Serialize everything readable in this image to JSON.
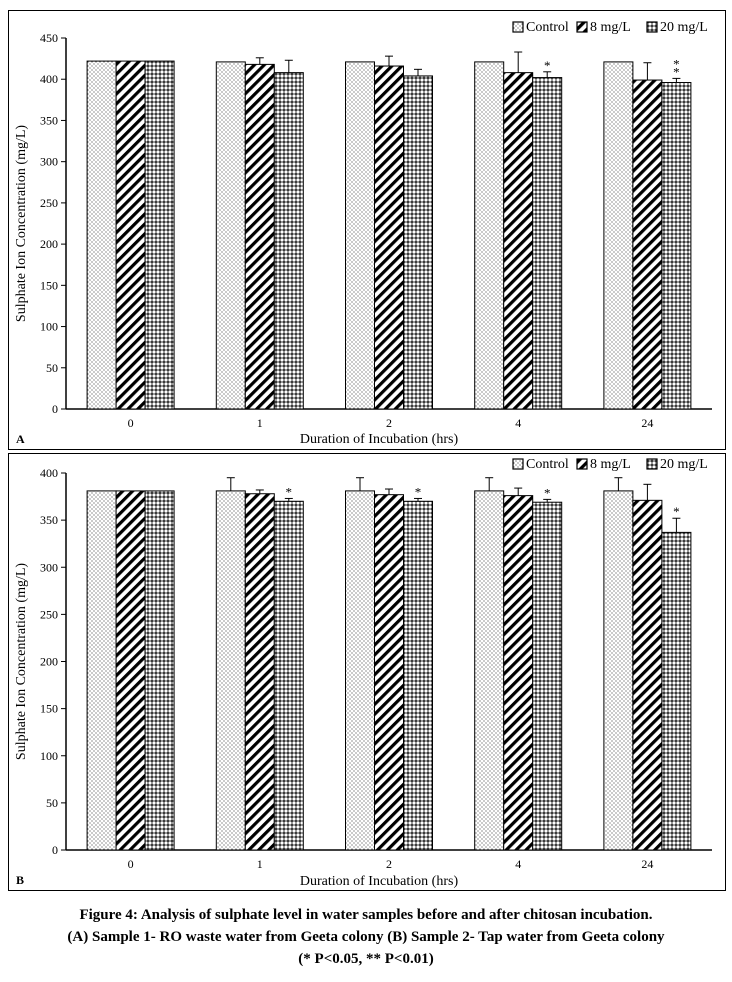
{
  "colors": {
    "axis": "#000000",
    "bar_fill": "#ffffff",
    "pattern": "#000000",
    "dense_bg": "#9a9a9a"
  },
  "legend": [
    "Control",
    "8 mg/L",
    "20 mg/L"
  ],
  "chart_data": [
    {
      "type": "bar",
      "panel_label": "A",
      "categories": [
        "0",
        "1",
        "2",
        "4",
        "24"
      ],
      "xlabel": "Duration of Incubation (hrs)",
      "ylabel": "Sulphate Ion Concentration (mg/L)",
      "ylim": [
        0,
        450
      ],
      "yticks": [
        "0",
        "50",
        "100",
        "150",
        "200",
        "250",
        "300",
        "350",
        "400",
        "450"
      ],
      "legend_position": "top-right",
      "grid": false,
      "series": [
        {
          "name": "Control",
          "pattern": "dots",
          "values": [
            422,
            421,
            421,
            421,
            421
          ],
          "errors": [
            0,
            0,
            0,
            0,
            0
          ]
        },
        {
          "name": "8 mg/L",
          "pattern": "diagonal",
          "values": [
            422,
            418,
            416,
            408,
            399
          ],
          "errors": [
            0,
            8,
            12,
            25,
            21
          ]
        },
        {
          "name": "20 mg/L",
          "pattern": "dense",
          "values": [
            422,
            408,
            404,
            402,
            396
          ],
          "errors": [
            0,
            15,
            8,
            7,
            5
          ]
        }
      ],
      "annotations": [
        {
          "category": "4",
          "series": "20 mg/L",
          "text": "*"
        },
        {
          "category": "24",
          "series": "20 mg/L",
          "text": "**"
        }
      ]
    },
    {
      "type": "bar",
      "panel_label": "B",
      "categories": [
        "0",
        "1",
        "2",
        "4",
        "24"
      ],
      "xlabel": "Duration of Incubation  (hrs)",
      "ylabel": "Sulphate Ion Concentration (mg/L)",
      "ylim": [
        0,
        400
      ],
      "yticks": [
        "0",
        "50",
        "100",
        "150",
        "200",
        "250",
        "300",
        "350",
        "400"
      ],
      "legend_position": "top-right",
      "grid": false,
      "series": [
        {
          "name": "Control",
          "pattern": "dots",
          "values": [
            381,
            381,
            381,
            381,
            381
          ],
          "errors": [
            0,
            14,
            14,
            14,
            14
          ]
        },
        {
          "name": "8 mg/L",
          "pattern": "diagonal",
          "values": [
            381,
            378,
            377,
            376,
            371
          ],
          "errors": [
            0,
            4,
            6,
            8,
            17
          ]
        },
        {
          "name": "20 mg/L",
          "pattern": "dense",
          "values": [
            381,
            370,
            370,
            369,
            337
          ],
          "errors": [
            0,
            3,
            3,
            3,
            15
          ]
        }
      ],
      "annotations": [
        {
          "category": "1",
          "series": "20 mg/L",
          "text": "*"
        },
        {
          "category": "2",
          "series": "20 mg/L",
          "text": "*"
        },
        {
          "category": "4",
          "series": "20 mg/L",
          "text": "*"
        },
        {
          "category": "24",
          "series": "20 mg/L",
          "text": "*"
        }
      ]
    }
  ],
  "caption": {
    "line1": "Figure 4: Analysis of sulphate level in water samples before and after chitosan incubation.",
    "line2": "(A) Sample 1- RO waste water from Geeta colony (B) Sample 2- Tap water from Geeta colony",
    "line3": "(* P<0.05, ** P<0.01)"
  }
}
